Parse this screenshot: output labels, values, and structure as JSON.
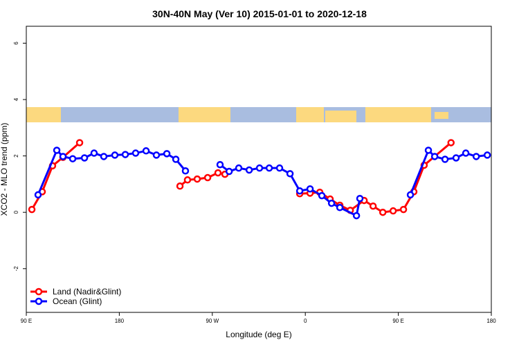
{
  "chart_data": {
    "type": "line",
    "title": "30N-40N May (Ver 10)   2015-01-01 to 2020-12-18",
    "xlabel": "Longitude (deg E)",
    "ylabel": "XCO2 - MLO trend (ppm)",
    "xlim": [
      90,
      540
    ],
    "ylim": [
      -3.55,
      6.6
    ],
    "xticks": [
      {
        "value": 90,
        "label": "90 E"
      },
      180,
      {
        "value": 270,
        "label": "90 W"
      },
      {
        "value": 360,
        "label": "0"
      },
      {
        "value": 450,
        "label": "90 E"
      },
      {
        "value": 540,
        "label": "180"
      }
    ],
    "yticks": [
      -2,
      0,
      2,
      4,
      6
    ],
    "legend": "bottom-left",
    "series": [
      {
        "name": "Land (Nadir&Glint)",
        "color": "#ff0000",
        "x": [
          95.4,
          105.4,
          115.4,
          125.5,
          141.6,
          null,
          238.7,
          246,
          255.4,
          265.5,
          275.5,
          282.2,
          null,
          354.6,
          364.6,
          374,
          384,
          393.4,
          403.5,
          416.9,
          425.6,
          435,
          445,
          455,
          465,
          475,
          501
        ],
        "values": [
          0.1,
          0.73,
          1.65,
          1.95,
          2.47,
          null,
          0.93,
          1.15,
          1.18,
          1.23,
          1.4,
          1.35,
          null,
          0.66,
          0.68,
          0.71,
          0.47,
          0.25,
          0.07,
          0.42,
          0.22,
          0.0,
          0.05,
          0.1,
          0.73,
          1.67,
          2.47
        ]
      },
      {
        "name": "Ocean (Glint)",
        "color": "#0000ff",
        "x": [
          101.4,
          119.5,
          125.5,
          134.9,
          146.3,
          155.6,
          165,
          175.7,
          185.8,
          195.8,
          205.9,
          215.9,
          226,
          234.7,
          244,
          null,
          277.5,
          286.3,
          295.6,
          305.7,
          315.7,
          325.1,
          335.1,
          345.2,
          354.6,
          364.6,
          376,
          385.4,
          393.4,
          409.5,
          412.8,
          null,
          461.7,
          479.1,
          485.2,
          495.2,
          505.9,
          515.3,
          525.4,
          536.1
        ],
        "values": [
          0.62,
          2.2,
          1.98,
          1.9,
          1.93,
          2.1,
          1.98,
          2.03,
          2.05,
          2.1,
          2.18,
          2.03,
          2.08,
          1.88,
          1.47,
          null,
          1.69,
          1.45,
          1.57,
          1.5,
          1.57,
          1.57,
          1.57,
          1.37,
          0.76,
          0.83,
          0.59,
          0.32,
          0.17,
          -0.12,
          0.49,
          null,
          0.62,
          2.2,
          1.98,
          1.88,
          1.93,
          2.1,
          1.98,
          2.03
        ]
      }
    ]
  }
}
